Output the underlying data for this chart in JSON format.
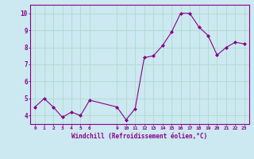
{
  "x_vals": [
    0,
    1,
    2,
    3,
    4,
    5,
    6,
    9,
    10,
    11,
    12,
    13,
    14,
    15,
    16,
    17,
    18,
    19,
    20,
    21,
    22,
    23
  ],
  "y_vals": [
    4.5,
    5.0,
    4.5,
    3.9,
    4.2,
    4.0,
    4.9,
    4.5,
    3.75,
    4.4,
    7.4,
    7.5,
    8.1,
    8.9,
    10.0,
    10.0,
    9.2,
    8.7,
    7.55,
    8.0,
    8.3,
    8.2
  ],
  "x_ticks": [
    0,
    1,
    2,
    3,
    4,
    5,
    6,
    9,
    10,
    11,
    12,
    13,
    14,
    15,
    16,
    17,
    18,
    19,
    20,
    21,
    22,
    23
  ],
  "x_tick_labels": [
    "0",
    "1",
    "2",
    "3",
    "4",
    "5",
    "6",
    "9",
    "10",
    "11",
    "12",
    "13",
    "14",
    "15",
    "16",
    "17",
    "18",
    "19",
    "20",
    "21",
    "22",
    "23"
  ],
  "y_ticks": [
    4,
    5,
    6,
    7,
    8,
    9,
    10
  ],
  "y_tick_labels": [
    "4",
    "5",
    "6",
    "7",
    "8",
    "9",
    "10"
  ],
  "ylim": [
    3.5,
    10.5
  ],
  "xlim": [
    -0.5,
    23.5
  ],
  "xlabel": "Windchill (Refroidissement éolien,°C)",
  "line_color": "#880088",
  "marker": "D",
  "marker_size": 2.0,
  "bg_color": "#cce8f0",
  "grid_color": "#aaddcc",
  "spine_color": "#880088"
}
